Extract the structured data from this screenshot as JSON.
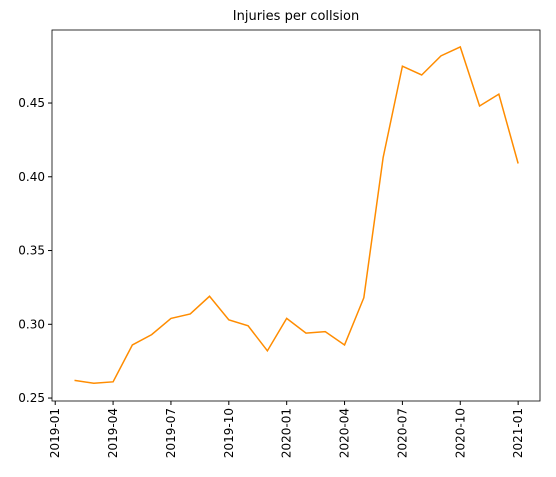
{
  "chart_data": {
    "type": "line",
    "title": "Injuries per collsion",
    "x": [
      "2019-02",
      "2019-03",
      "2019-04",
      "2019-05",
      "2019-06",
      "2019-07",
      "2019-08",
      "2019-09",
      "2019-10",
      "2019-11",
      "2019-12",
      "2020-01",
      "2020-02",
      "2020-03",
      "2020-04",
      "2020-05",
      "2020-06",
      "2020-07",
      "2020-08",
      "2020-09",
      "2020-10",
      "2020-11",
      "2020-12",
      "2021-01"
    ],
    "series": [
      {
        "name": "Injuries per collsion",
        "color": "#ff8c00",
        "values": [
          0.262,
          0.26,
          0.261,
          0.286,
          0.293,
          0.304,
          0.307,
          0.319,
          0.303,
          0.299,
          0.282,
          0.304,
          0.294,
          0.295,
          0.286,
          0.318,
          0.413,
          0.475,
          0.469,
          0.482,
          0.488,
          0.448,
          0.456,
          0.409
        ]
      }
    ],
    "xlim": [
      "2018-12-26",
      "2021-02-05"
    ],
    "xticks": [
      "2019-01",
      "2019-04",
      "2019-07",
      "2019-10",
      "2020-01",
      "2020-04",
      "2020-07",
      "2020-10",
      "2021-01"
    ],
    "ylim": [
      0.248,
      0.4995
    ],
    "yticks": [
      {
        "value": 0.25,
        "label": "0.25"
      },
      {
        "value": 0.3,
        "label": "0.30"
      },
      {
        "value": 0.35,
        "label": "0.35"
      },
      {
        "value": 0.4,
        "label": "0.40"
      },
      {
        "value": 0.45,
        "label": "0.45"
      }
    ],
    "grid": false
  }
}
